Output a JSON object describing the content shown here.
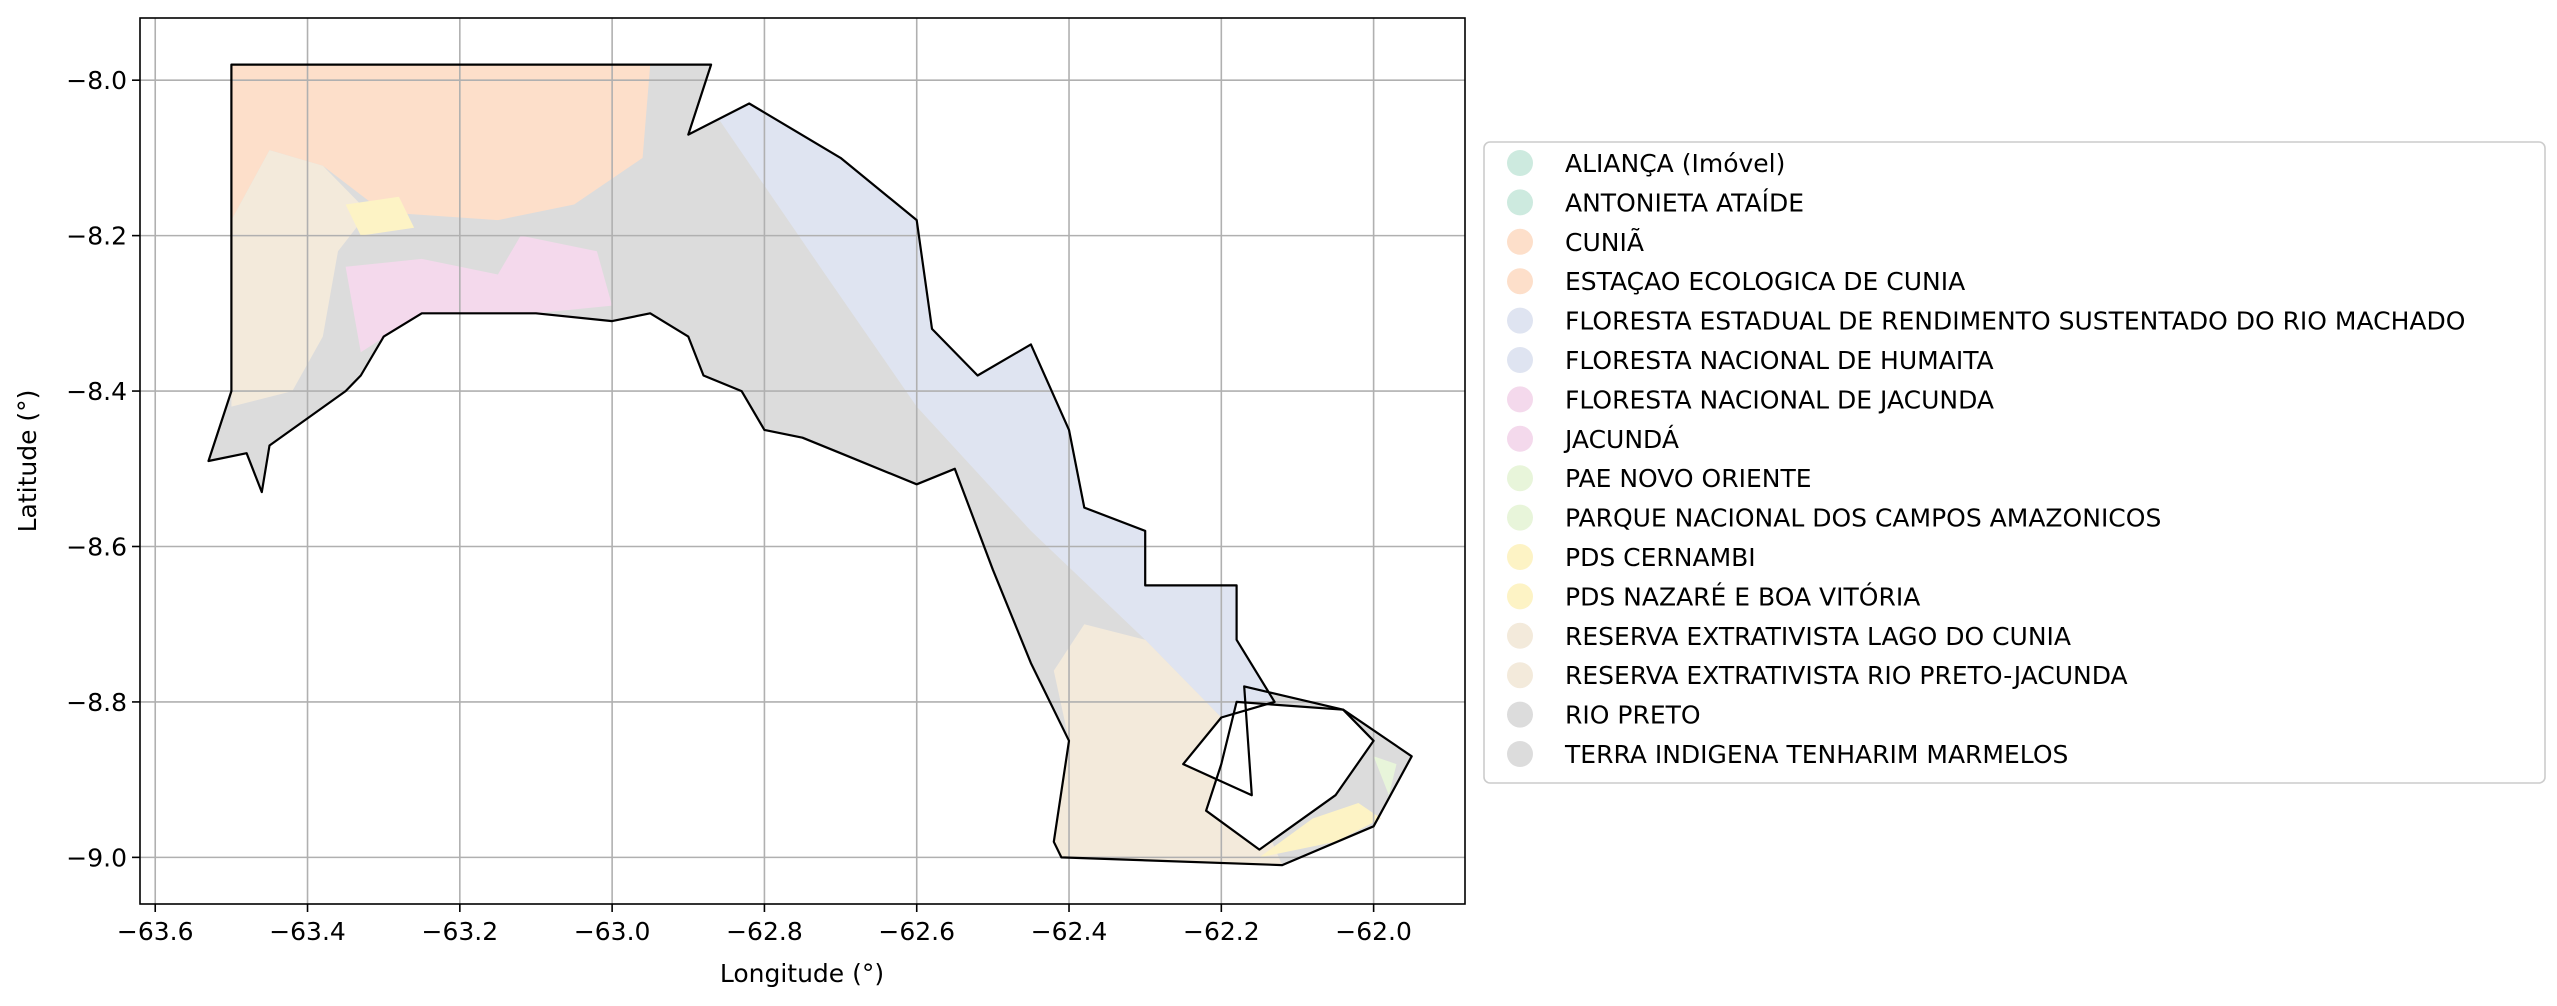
{
  "map": {
    "xlabel": "Longitude (°)",
    "ylabel": "Latitude (°)",
    "xlim": [
      -63.62,
      -61.88
    ],
    "ylim": [
      -9.06,
      -7.92
    ],
    "grid": true,
    "legend_placement": "right",
    "x_ticks": [
      {
        "value": -63.6,
        "label": "−63.6"
      },
      {
        "value": -63.4,
        "label": "−63.4"
      },
      {
        "value": -63.2,
        "label": "−63.2"
      },
      {
        "value": -63.0,
        "label": "−63.0"
      },
      {
        "value": -62.8,
        "label": "−62.8"
      },
      {
        "value": -62.6,
        "label": "−62.6"
      },
      {
        "value": -62.4,
        "label": "−62.4"
      },
      {
        "value": -62.2,
        "label": "−62.2"
      },
      {
        "value": -62.0,
        "label": "−62.0"
      }
    ],
    "y_ticks": [
      {
        "value": -8.0,
        "label": "−8.0"
      },
      {
        "value": -8.2,
        "label": "−8.2"
      },
      {
        "value": -8.4,
        "label": "−8.4"
      },
      {
        "value": -8.6,
        "label": "−8.6"
      },
      {
        "value": -8.8,
        "label": "−8.8"
      },
      {
        "value": -9.0,
        "label": "−9.0"
      }
    ],
    "legend": [
      {
        "label": "ALIANÇA (Imóvel)",
        "color": "#cdeadf"
      },
      {
        "label": "ANTONIETA ATAÍDE",
        "color": "#cdeadf"
      },
      {
        "label": "CUNIÃ",
        "color": "#fddfca"
      },
      {
        "label": "ESTAÇAO ECOLOGICA DE CUNIA",
        "color": "#fddfca"
      },
      {
        "label": "FLORESTA ESTADUAL DE RENDIMENTO SUSTENTADO DO RIO MACHADO",
        "color": "#dfe4f1"
      },
      {
        "label": "FLORESTA NACIONAL DE HUMAITA",
        "color": "#dfe4f1"
      },
      {
        "label": "FLORESTA NACIONAL DE JACUNDA",
        "color": "#f4d9ec"
      },
      {
        "label": "JACUNDÁ",
        "color": "#f4d9ec"
      },
      {
        "label": "PAE NOVO ORIENTE",
        "color": "#e8f5da"
      },
      {
        "label": "PARQUE NACIONAL DOS CAMPOS AMAZONICOS",
        "color": "#e8f5da"
      },
      {
        "label": "PDS CERNAMBI",
        "color": "#fdf3c5"
      },
      {
        "label": "PDS NAZARÉ E BOA VITÓRIA",
        "color": "#fdf3c5"
      },
      {
        "label": "RESERVA EXTRATIVISTA LAGO DO CUNIA",
        "color": "#f3eadb"
      },
      {
        "label": "RESERVA EXTRATIVISTA RIO PRETO-JACUNDA",
        "color": "#f3eadb"
      },
      {
        "label": "RIO PRETO",
        "color": "#dcdcdc"
      },
      {
        "label": "TERRA INDIGENA TENHARIM MARMELOS",
        "color": "#dcdcdc"
      }
    ],
    "boundary": [
      [
        -63.5,
        -7.98
      ],
      [
        -62.87,
        -7.98
      ],
      [
        -62.9,
        -8.07
      ],
      [
        -62.82,
        -8.03
      ],
      [
        -62.7,
        -8.1
      ],
      [
        -62.6,
        -8.18
      ],
      [
        -62.58,
        -8.32
      ],
      [
        -62.52,
        -8.38
      ],
      [
        -62.45,
        -8.34
      ],
      [
        -62.4,
        -8.45
      ],
      [
        -62.38,
        -8.55
      ],
      [
        -62.3,
        -8.58
      ],
      [
        -62.3,
        -8.65
      ],
      [
        -62.18,
        -8.65
      ],
      [
        -62.18,
        -8.72
      ],
      [
        -62.13,
        -8.8
      ],
      [
        -62.2,
        -8.82
      ],
      [
        -62.25,
        -8.88
      ],
      [
        -62.16,
        -8.92
      ],
      [
        -62.17,
        -8.78
      ],
      [
        -62.04,
        -8.81
      ],
      [
        -61.95,
        -8.87
      ],
      [
        -62.0,
        -8.96
      ],
      [
        -62.12,
        -9.01
      ],
      [
        -62.41,
        -9.0
      ],
      [
        -62.42,
        -8.98
      ],
      [
        -62.4,
        -8.85
      ],
      [
        -62.45,
        -8.75
      ],
      [
        -62.5,
        -8.63
      ],
      [
        -62.55,
        -8.5
      ],
      [
        -62.6,
        -8.52
      ],
      [
        -62.7,
        -8.48
      ],
      [
        -62.75,
        -8.46
      ],
      [
        -62.8,
        -8.45
      ],
      [
        -62.83,
        -8.4
      ],
      [
        -62.88,
        -8.38
      ],
      [
        -62.9,
        -8.33
      ],
      [
        -62.95,
        -8.3
      ],
      [
        -63.0,
        -8.31
      ],
      [
        -63.1,
        -8.3
      ],
      [
        -63.25,
        -8.3
      ],
      [
        -63.3,
        -8.33
      ],
      [
        -63.33,
        -8.38
      ],
      [
        -63.35,
        -8.4
      ],
      [
        -63.45,
        -8.47
      ],
      [
        -63.46,
        -8.53
      ],
      [
        -63.48,
        -8.48
      ],
      [
        -63.53,
        -8.49
      ],
      [
        -63.5,
        -8.4
      ],
      [
        -63.5,
        -7.98
      ]
    ],
    "regions": [
      {
        "name": "RIO PRETO",
        "color": "#dcdcdc",
        "polygon": [
          [
            -63.5,
            -7.98
          ],
          [
            -62.87,
            -7.98
          ],
          [
            -62.9,
            -8.07
          ],
          [
            -62.82,
            -8.03
          ],
          [
            -62.7,
            -8.1
          ],
          [
            -62.6,
            -8.18
          ],
          [
            -62.58,
            -8.32
          ],
          [
            -62.52,
            -8.38
          ],
          [
            -62.45,
            -8.34
          ],
          [
            -62.4,
            -8.45
          ],
          [
            -62.38,
            -8.55
          ],
          [
            -62.3,
            -8.58
          ],
          [
            -62.3,
            -8.65
          ],
          [
            -62.18,
            -8.65
          ],
          [
            -62.18,
            -8.72
          ],
          [
            -62.13,
            -8.8
          ],
          [
            -62.2,
            -8.82
          ],
          [
            -62.25,
            -8.88
          ],
          [
            -62.16,
            -8.92
          ],
          [
            -62.17,
            -8.78
          ],
          [
            -62.04,
            -8.81
          ],
          [
            -61.95,
            -8.87
          ],
          [
            -62.0,
            -8.96
          ],
          [
            -62.12,
            -9.01
          ],
          [
            -62.41,
            -9.0
          ],
          [
            -62.42,
            -8.98
          ],
          [
            -62.4,
            -8.85
          ],
          [
            -62.45,
            -8.75
          ],
          [
            -62.5,
            -8.63
          ],
          [
            -62.55,
            -8.5
          ],
          [
            -62.6,
            -8.52
          ],
          [
            -62.7,
            -8.48
          ],
          [
            -62.75,
            -8.46
          ],
          [
            -62.8,
            -8.45
          ],
          [
            -62.83,
            -8.4
          ],
          [
            -62.88,
            -8.38
          ],
          [
            -62.9,
            -8.33
          ],
          [
            -62.95,
            -8.3
          ],
          [
            -63.0,
            -8.31
          ],
          [
            -63.1,
            -8.3
          ],
          [
            -63.25,
            -8.3
          ],
          [
            -63.3,
            -8.33
          ],
          [
            -63.33,
            -8.38
          ],
          [
            -63.35,
            -8.4
          ],
          [
            -63.45,
            -8.47
          ],
          [
            -63.46,
            -8.53
          ],
          [
            -63.48,
            -8.48
          ],
          [
            -63.53,
            -8.49
          ],
          [
            -63.5,
            -8.4
          ]
        ]
      },
      {
        "name": "ESTAÇAO ECOLOGICA DE CUNIA",
        "color": "#fddfca",
        "polygon": [
          [
            -63.5,
            -7.98
          ],
          [
            -62.95,
            -7.98
          ],
          [
            -62.96,
            -8.1
          ],
          [
            -63.05,
            -8.16
          ],
          [
            -63.15,
            -8.18
          ],
          [
            -63.3,
            -8.17
          ],
          [
            -63.38,
            -8.11
          ],
          [
            -63.45,
            -8.09
          ],
          [
            -63.5,
            -8.18
          ]
        ]
      },
      {
        "name": "RESERVA EXTRATIVISTA LAGO DO CUNIA",
        "color": "#f3eadb",
        "polygon": [
          [
            -63.5,
            -8.18
          ],
          [
            -63.45,
            -8.09
          ],
          [
            -63.38,
            -8.11
          ],
          [
            -63.32,
            -8.17
          ],
          [
            -63.36,
            -8.22
          ],
          [
            -63.38,
            -8.33
          ],
          [
            -63.42,
            -8.4
          ],
          [
            -63.5,
            -8.42
          ]
        ]
      },
      {
        "name": "PDS CERNAMBI",
        "color": "#fdf3c5",
        "polygon": [
          [
            -63.35,
            -8.16
          ],
          [
            -63.28,
            -8.15
          ],
          [
            -63.26,
            -8.19
          ],
          [
            -63.33,
            -8.2
          ]
        ]
      },
      {
        "name": "FLORESTA NACIONAL DE JACUNDA",
        "color": "#f4d9ec",
        "polygon": [
          [
            -63.35,
            -8.24
          ],
          [
            -63.25,
            -8.23
          ],
          [
            -63.15,
            -8.25
          ],
          [
            -63.12,
            -8.2
          ],
          [
            -63.02,
            -8.22
          ],
          [
            -63.0,
            -8.29
          ],
          [
            -63.1,
            -8.3
          ],
          [
            -63.25,
            -8.3
          ],
          [
            -63.33,
            -8.35
          ]
        ]
      },
      {
        "name": "FLORESTA NACIONAL DE HUMAITA",
        "color": "#dfe4f1",
        "polygon": [
          [
            -62.86,
            -8.05
          ],
          [
            -62.82,
            -8.03
          ],
          [
            -62.7,
            -8.1
          ],
          [
            -62.6,
            -8.18
          ],
          [
            -62.58,
            -8.32
          ],
          [
            -62.52,
            -8.38
          ],
          [
            -62.45,
            -8.34
          ],
          [
            -62.4,
            -8.45
          ],
          [
            -62.38,
            -8.55
          ],
          [
            -62.3,
            -8.58
          ],
          [
            -62.3,
            -8.65
          ],
          [
            -62.18,
            -8.65
          ],
          [
            -62.18,
            -8.72
          ],
          [
            -62.13,
            -8.8
          ],
          [
            -62.2,
            -8.82
          ],
          [
            -62.3,
            -8.72
          ],
          [
            -62.45,
            -8.58
          ],
          [
            -62.6,
            -8.42
          ],
          [
            -62.72,
            -8.25
          ]
        ]
      },
      {
        "name": "RESERVA EXTRATIVISTA RIO PRETO-JACUNDA",
        "color": "#f3eadb",
        "polygon": [
          [
            -62.38,
            -8.7
          ],
          [
            -62.3,
            -8.72
          ],
          [
            -62.2,
            -8.82
          ],
          [
            -62.25,
            -8.88
          ],
          [
            -62.16,
            -8.92
          ],
          [
            -62.12,
            -9.01
          ],
          [
            -62.41,
            -9.0
          ],
          [
            -62.42,
            -8.98
          ],
          [
            -62.4,
            -8.85
          ],
          [
            -62.42,
            -8.76
          ]
        ]
      },
      {
        "name": "PDS NAZARÉ E BOA VITÓRIA",
        "color": "#fdf3c5",
        "polygon": [
          [
            -62.15,
            -9.0
          ],
          [
            -62.05,
            -8.98
          ],
          [
            -61.99,
            -8.95
          ],
          [
            -62.02,
            -8.93
          ],
          [
            -62.08,
            -8.95
          ]
        ]
      },
      {
        "name": "PAE NOVO ORIENTE",
        "color": "#e8f5da",
        "polygon": [
          [
            -62.0,
            -8.87
          ],
          [
            -61.97,
            -8.88
          ],
          [
            -61.98,
            -8.92
          ]
        ]
      }
    ],
    "inner_hole": [
      [
        -62.18,
        -8.8
      ],
      [
        -62.04,
        -8.81
      ],
      [
        -62.0,
        -8.85
      ],
      [
        -62.05,
        -8.92
      ],
      [
        -62.15,
        -8.99
      ],
      [
        -62.22,
        -8.94
      ],
      [
        -62.2,
        -8.88
      ]
    ]
  }
}
